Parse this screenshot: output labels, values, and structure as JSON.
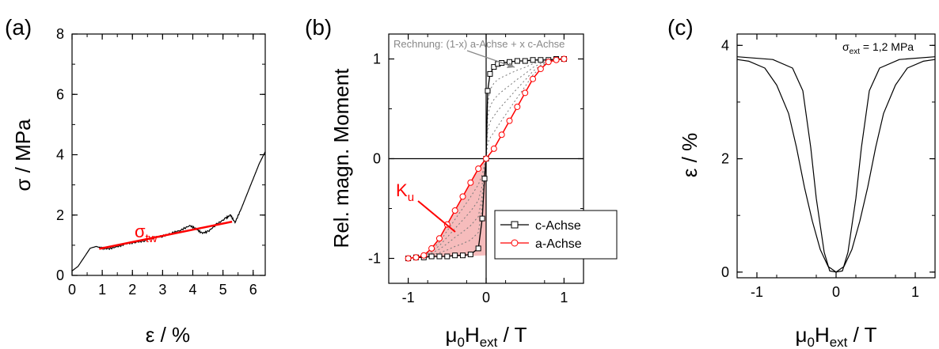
{
  "chart_data": [
    {
      "panel_label": "(a)",
      "type": "line",
      "xlabel": "ε / %",
      "ylabel": "σ / MPa",
      "xlim": [
        0,
        6.4
      ],
      "ylim": [
        0,
        8
      ],
      "xticks": [
        "0",
        "1",
        "2",
        "3",
        "4",
        "5",
        "6"
      ],
      "yticks": [
        "0",
        "2",
        "4",
        "6",
        "8"
      ],
      "series": [
        {
          "name": "",
          "color": "#000000",
          "points": [
            [
              0,
              0.15
            ],
            [
              0.2,
              0.3
            ],
            [
              0.4,
              0.6
            ],
            [
              0.6,
              0.9
            ],
            [
              0.8,
              0.96
            ],
            [
              1.0,
              0.9
            ],
            [
              1.2,
              0.88
            ],
            [
              1.5,
              0.95
            ],
            [
              1.8,
              1.05
            ],
            [
              2.1,
              1.1
            ],
            [
              2.4,
              1.15
            ],
            [
              2.7,
              1.25
            ],
            [
              3.0,
              1.3
            ],
            [
              3.3,
              1.4
            ],
            [
              3.6,
              1.5
            ],
            [
              3.9,
              1.65
            ],
            [
              4.1,
              1.55
            ],
            [
              4.3,
              1.4
            ],
            [
              4.5,
              1.45
            ],
            [
              4.8,
              1.7
            ],
            [
              5.1,
              1.9
            ],
            [
              5.25,
              2.0
            ],
            [
              5.4,
              1.75
            ],
            [
              5.6,
              2.2
            ],
            [
              5.8,
              2.7
            ],
            [
              6.0,
              3.2
            ],
            [
              6.2,
              3.7
            ],
            [
              6.4,
              4.1
            ]
          ]
        },
        {
          "name": "",
          "color": "#ff0000",
          "points": [
            [
              0.9,
              0.88
            ],
            [
              5.3,
              1.78
            ]
          ]
        }
      ],
      "annotations": [
        {
          "text": "σ",
          "sub": "tw",
          "color": "#ff0000"
        }
      ]
    },
    {
      "panel_label": "(b)",
      "type": "line",
      "xlabel": "μ₀H_ext / T",
      "ylabel": "Rel. magn. Moment",
      "xlim": [
        -1.25,
        1.25
      ],
      "ylim": [
        -1.25,
        1.25
      ],
      "xticks": [
        "-1",
        "0",
        "1"
      ],
      "yticks": [
        "-1",
        "0",
        "1"
      ],
      "legend": {
        "placement": "bottom-right"
      },
      "series": [
        {
          "name": "c-Achse",
          "color": "#000000",
          "marker": "square",
          "x": [
            -1.0,
            -0.9,
            -0.8,
            -0.7,
            -0.6,
            -0.5,
            -0.4,
            -0.3,
            -0.2,
            -0.1,
            -0.05,
            -0.02,
            0.0,
            0.02,
            0.05,
            0.1,
            0.15,
            0.2,
            0.3,
            0.4,
            0.5,
            0.6,
            0.7,
            0.8,
            0.9,
            1.0
          ],
          "y": [
            -1.0,
            -0.99,
            -0.99,
            -0.98,
            -0.98,
            -0.98,
            -0.97,
            -0.97,
            -0.96,
            -0.9,
            -0.6,
            -0.2,
            0.0,
            0.68,
            0.85,
            0.92,
            0.95,
            0.96,
            0.97,
            0.98,
            0.98,
            0.99,
            0.99,
            0.99,
            1.0,
            1.0
          ]
        },
        {
          "name": "a-Achse",
          "color": "#ff0000",
          "marker": "circle",
          "x": [
            -1.0,
            -0.9,
            -0.8,
            -0.7,
            -0.6,
            -0.5,
            -0.4,
            -0.3,
            -0.2,
            -0.1,
            0.0,
            0.1,
            0.2,
            0.3,
            0.4,
            0.5,
            0.6,
            0.7,
            0.8,
            0.9,
            1.0
          ],
          "y": [
            -1.0,
            -0.99,
            -0.97,
            -0.9,
            -0.8,
            -0.66,
            -0.52,
            -0.38,
            -0.24,
            -0.1,
            0.0,
            0.1,
            0.24,
            0.38,
            0.52,
            0.66,
            0.8,
            0.9,
            0.97,
            0.99,
            1.0
          ]
        }
      ],
      "annotations": [
        {
          "text": "Rechnung: (1-x) a-Achse + x c-Achse",
          "color": "#888888"
        },
        {
          "text": "K",
          "sub": "u",
          "color": "#ff0000"
        }
      ]
    },
    {
      "panel_label": "(c)",
      "type": "line",
      "xlabel": "μ₀H_ext / T",
      "ylabel": "ε / %",
      "xlim": [
        -1.25,
        1.25
      ],
      "ylim": [
        -0.1,
        4.2
      ],
      "xticks": [
        "-1",
        "0",
        "1"
      ],
      "yticks": [
        "0",
        "2",
        "4"
      ],
      "series": [
        {
          "name": "",
          "color": "#000000",
          "points": [
            [
              -1.25,
              3.75
            ],
            [
              -1.1,
              3.72
            ],
            [
              -0.9,
              3.6
            ],
            [
              -0.75,
              3.3
            ],
            [
              -0.6,
              2.8
            ],
            [
              -0.5,
              2.2
            ],
            [
              -0.4,
              1.5
            ],
            [
              -0.3,
              0.9
            ],
            [
              -0.2,
              0.4
            ],
            [
              -0.1,
              0.1
            ],
            [
              0.0,
              0.0
            ],
            [
              0.08,
              0.02
            ],
            [
              0.15,
              0.35
            ],
            [
              0.25,
              1.3
            ],
            [
              0.32,
              2.2
            ],
            [
              0.42,
              3.2
            ],
            [
              0.55,
              3.6
            ],
            [
              0.8,
              3.75
            ],
            [
              1.25,
              3.8
            ]
          ]
        },
        {
          "name": "",
          "color": "#000000",
          "points": [
            [
              -1.25,
              3.8
            ],
            [
              -0.8,
              3.75
            ],
            [
              -0.55,
              3.6
            ],
            [
              -0.42,
              3.2
            ],
            [
              -0.32,
              2.2
            ],
            [
              -0.25,
              1.3
            ],
            [
              -0.15,
              0.35
            ],
            [
              -0.08,
              0.02
            ],
            [
              0.0,
              0.0
            ],
            [
              0.1,
              0.1
            ],
            [
              0.2,
              0.4
            ],
            [
              0.3,
              0.9
            ],
            [
              0.4,
              1.5
            ],
            [
              0.5,
              2.2
            ],
            [
              0.6,
              2.8
            ],
            [
              0.75,
              3.3
            ],
            [
              0.9,
              3.6
            ],
            [
              1.1,
              3.72
            ],
            [
              1.25,
              3.75
            ]
          ]
        }
      ],
      "annotations": [
        {
          "text": "σ",
          "sub": "ext",
          "after": " = 1,2 MPa",
          "color": "#000000"
        }
      ]
    }
  ],
  "labels": {
    "b_xlabel_mu": "μ",
    "b_xlabel_mu_sub": "0",
    "b_xlabel_H": "H",
    "b_xlabel_H_sub": "ext",
    "b_xlabel_unit": " / T",
    "c_xlabel_mu": "μ",
    "c_xlabel_mu_sub": "0",
    "c_xlabel_H": "H",
    "c_xlabel_H_sub": "ext",
    "c_xlabel_unit": " / T"
  }
}
